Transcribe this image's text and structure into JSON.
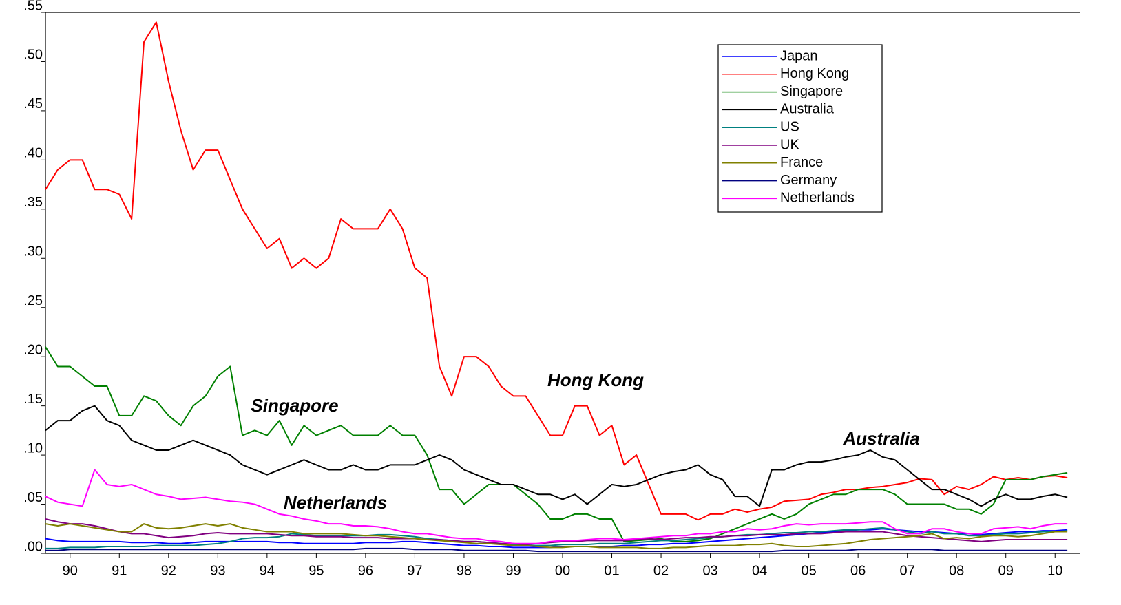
{
  "chart_data": {
    "type": "line",
    "legend": "top-right",
    "xlim": [
      1990,
      2011
    ],
    "ylim": [
      0,
      0.55
    ],
    "yticks": [
      {
        "value": 0,
        "label": ".00"
      },
      {
        "value": 0.05,
        "label": ".05"
      },
      {
        "value": 0.1,
        "label": ".10"
      },
      {
        "value": 0.15,
        "label": ".15"
      },
      {
        "value": 0.2,
        "label": ".20"
      },
      {
        "value": 0.25,
        "label": ".25"
      },
      {
        "value": 0.3,
        "label": ".30"
      },
      {
        "value": 0.35,
        "label": ".35"
      },
      {
        "value": 0.4,
        "label": ".40"
      },
      {
        "value": 0.45,
        "label": ".45"
      },
      {
        "value": 0.5,
        "label": ".50"
      },
      {
        "value": 0.55,
        "label": ".55"
      }
    ],
    "xticks": [
      {
        "value": 1990.5,
        "label": "90"
      },
      {
        "value": 1991.5,
        "label": "91"
      },
      {
        "value": 1992.5,
        "label": "92"
      },
      {
        "value": 1993.5,
        "label": "93"
      },
      {
        "value": 1994.5,
        "label": "94"
      },
      {
        "value": 1995.5,
        "label": "95"
      },
      {
        "value": 1996.5,
        "label": "96"
      },
      {
        "value": 1997.5,
        "label": "97"
      },
      {
        "value": 1998.5,
        "label": "98"
      },
      {
        "value": 1999.5,
        "label": "99"
      },
      {
        "value": 2000.5,
        "label": "00"
      },
      {
        "value": 2001.5,
        "label": "01"
      },
      {
        "value": 2002.5,
        "label": "02"
      },
      {
        "value": 2003.5,
        "label": "03"
      },
      {
        "value": 2004.5,
        "label": "04"
      },
      {
        "value": 2005.5,
        "label": "05"
      },
      {
        "value": 2006.5,
        "label": "06"
      },
      {
        "value": 2007.5,
        "label": "07"
      },
      {
        "value": 2008.5,
        "label": "08"
      },
      {
        "value": 2009.5,
        "label": "09"
      },
      {
        "value": 2010.5,
        "label": "10"
      }
    ],
    "annotations": [
      "Hong Kong",
      "Singapore",
      "Australia",
      "Netherlands"
    ],
    "x": [
      1990,
      1990.25,
      1990.5,
      1990.75,
      1991,
      1991.25,
      1991.5,
      1991.75,
      1992,
      1992.25,
      1992.5,
      1992.75,
      1993,
      1993.25,
      1993.5,
      1993.75,
      1994,
      1994.25,
      1994.5,
      1994.75,
      1995,
      1995.25,
      1995.5,
      1995.75,
      1996,
      1996.25,
      1996.5,
      1996.75,
      1997,
      1997.25,
      1997.5,
      1997.75,
      1998,
      1998.25,
      1998.5,
      1998.75,
      1999,
      1999.25,
      1999.5,
      1999.75,
      2000,
      2000.25,
      2000.5,
      2000.75,
      2001,
      2001.25,
      2001.5,
      2001.75,
      2002,
      2002.25,
      2002.5,
      2002.75,
      2003,
      2003.25,
      2003.5,
      2003.75,
      2004,
      2004.25,
      2004.5,
      2004.75,
      2005,
      2005.25,
      2005.5,
      2005.75,
      2006,
      2006.25,
      2006.5,
      2006.75,
      2007,
      2007.25,
      2007.5,
      2007.75,
      2008,
      2008.25,
      2008.5,
      2008.75,
      2009,
      2009.25,
      2009.5,
      2009.75,
      2010,
      2010.25,
      2010.5,
      2010.75
    ],
    "series": [
      {
        "name": "Japan",
        "color": "#0000ff",
        "values": [
          0.015,
          0.013,
          0.012,
          0.012,
          0.012,
          0.012,
          0.012,
          0.011,
          0.011,
          0.011,
          0.01,
          0.01,
          0.011,
          0.012,
          0.012,
          0.012,
          0.012,
          0.012,
          0.012,
          0.011,
          0.011,
          0.01,
          0.01,
          0.01,
          0.01,
          0.01,
          0.011,
          0.011,
          0.011,
          0.012,
          0.012,
          0.011,
          0.01,
          0.009,
          0.008,
          0.008,
          0.007,
          0.007,
          0.006,
          0.006,
          0.006,
          0.006,
          0.007,
          0.007,
          0.007,
          0.007,
          0.007,
          0.008,
          0.008,
          0.009,
          0.009,
          0.01,
          0.01,
          0.011,
          0.012,
          0.013,
          0.014,
          0.015,
          0.016,
          0.017,
          0.018,
          0.019,
          0.02,
          0.021,
          0.022,
          0.023,
          0.024,
          0.024,
          0.025,
          0.024,
          0.023,
          0.022,
          0.022,
          0.021,
          0.02,
          0.02,
          0.019,
          0.02,
          0.021,
          0.022,
          0.022,
          0.023,
          0.023,
          0.024
        ]
      },
      {
        "name": "Hong Kong",
        "color": "#ff0000",
        "values": [
          0.37,
          0.39,
          0.4,
          0.4,
          0.37,
          0.37,
          0.365,
          0.34,
          0.52,
          0.54,
          0.48,
          0.43,
          0.39,
          0.41,
          0.41,
          0.38,
          0.35,
          0.33,
          0.31,
          0.32,
          0.29,
          0.3,
          0.29,
          0.3,
          0.34,
          0.33,
          0.33,
          0.33,
          0.35,
          0.33,
          0.29,
          0.28,
          0.19,
          0.16,
          0.2,
          0.2,
          0.19,
          0.17,
          0.16,
          0.16,
          0.14,
          0.12,
          0.12,
          0.15,
          0.15,
          0.12,
          0.13,
          0.09,
          0.1,
          0.07,
          0.04,
          0.04,
          0.04,
          0.034,
          0.04,
          0.04,
          0.045,
          0.042,
          0.045,
          0.047,
          0.053,
          0.054,
          0.055,
          0.06,
          0.062,
          0.065,
          0.065,
          0.067,
          0.068,
          0.07,
          0.072,
          0.076,
          0.075,
          0.06,
          0.068,
          0.065,
          0.07,
          0.078,
          0.075,
          0.077,
          0.075,
          0.078,
          0.079,
          0.077
        ]
      },
      {
        "name": "Singapore",
        "color": "#008000",
        "values": [
          0.21,
          0.19,
          0.19,
          0.18,
          0.17,
          0.17,
          0.14,
          0.14,
          0.16,
          0.155,
          0.14,
          0.13,
          0.15,
          0.16,
          0.18,
          0.19,
          0.12,
          0.125,
          0.12,
          0.135,
          0.11,
          0.13,
          0.12,
          0.125,
          0.13,
          0.12,
          0.12,
          0.12,
          0.13,
          0.12,
          0.12,
          0.1,
          0.065,
          0.065,
          0.05,
          0.06,
          0.07,
          0.07,
          0.07,
          0.06,
          0.05,
          0.035,
          0.035,
          0.04,
          0.04,
          0.035,
          0.035,
          0.012,
          0.013,
          0.014,
          0.015,
          0.012,
          0.012,
          0.013,
          0.015,
          0.02,
          0.025,
          0.03,
          0.035,
          0.04,
          0.035,
          0.04,
          0.05,
          0.055,
          0.06,
          0.06,
          0.065,
          0.065,
          0.065,
          0.06,
          0.05,
          0.05,
          0.05,
          0.05,
          0.045,
          0.045,
          0.04,
          0.05,
          0.075,
          0.075,
          0.075,
          0.078,
          0.08,
          0.082
        ]
      },
      {
        "name": "Australia",
        "color": "#000000",
        "values": [
          0.125,
          0.135,
          0.135,
          0.145,
          0.15,
          0.135,
          0.13,
          0.115,
          0.11,
          0.105,
          0.105,
          0.11,
          0.115,
          0.11,
          0.105,
          0.1,
          0.09,
          0.085,
          0.08,
          0.085,
          0.09,
          0.095,
          0.09,
          0.085,
          0.085,
          0.09,
          0.085,
          0.085,
          0.09,
          0.09,
          0.09,
          0.095,
          0.1,
          0.095,
          0.085,
          0.08,
          0.075,
          0.07,
          0.07,
          0.065,
          0.06,
          0.06,
          0.055,
          0.06,
          0.05,
          0.06,
          0.07,
          0.068,
          0.07,
          0.075,
          0.08,
          0.083,
          0.085,
          0.09,
          0.08,
          0.075,
          0.058,
          0.058,
          0.048,
          0.085,
          0.085,
          0.09,
          0.093,
          0.093,
          0.095,
          0.098,
          0.1,
          0.105,
          0.098,
          0.095,
          0.085,
          0.075,
          0.065,
          0.065,
          0.06,
          0.055,
          0.048,
          0.055,
          0.06,
          0.055,
          0.055,
          0.058,
          0.06,
          0.057
        ]
      },
      {
        "name": "US",
        "color": "#008080",
        "values": [
          0.005,
          0.005,
          0.006,
          0.006,
          0.006,
          0.007,
          0.007,
          0.007,
          0.007,
          0.008,
          0.008,
          0.008,
          0.008,
          0.009,
          0.01,
          0.012,
          0.015,
          0.016,
          0.016,
          0.017,
          0.02,
          0.019,
          0.018,
          0.018,
          0.018,
          0.018,
          0.018,
          0.019,
          0.019,
          0.018,
          0.017,
          0.015,
          0.014,
          0.013,
          0.012,
          0.012,
          0.011,
          0.01,
          0.009,
          0.008,
          0.008,
          0.008,
          0.009,
          0.009,
          0.009,
          0.01,
          0.01,
          0.01,
          0.011,
          0.012,
          0.013,
          0.013,
          0.014,
          0.015,
          0.016,
          0.017,
          0.018,
          0.019,
          0.019,
          0.02,
          0.021,
          0.021,
          0.022,
          0.022,
          0.023,
          0.024,
          0.024,
          0.025,
          0.026,
          0.024,
          0.022,
          0.02,
          0.022,
          0.02,
          0.02,
          0.018,
          0.018,
          0.019,
          0.02,
          0.02,
          0.021,
          0.022,
          0.022,
          0.023
        ]
      },
      {
        "name": "UK",
        "color": "#800080",
        "values": [
          0.035,
          0.032,
          0.03,
          0.03,
          0.028,
          0.025,
          0.022,
          0.02,
          0.02,
          0.018,
          0.016,
          0.017,
          0.018,
          0.02,
          0.021,
          0.02,
          0.02,
          0.02,
          0.02,
          0.019,
          0.018,
          0.018,
          0.017,
          0.017,
          0.017,
          0.016,
          0.016,
          0.016,
          0.015,
          0.015,
          0.015,
          0.014,
          0.014,
          0.013,
          0.012,
          0.012,
          0.011,
          0.01,
          0.01,
          0.009,
          0.01,
          0.011,
          0.012,
          0.012,
          0.013,
          0.013,
          0.013,
          0.013,
          0.014,
          0.015,
          0.014,
          0.015,
          0.016,
          0.016,
          0.017,
          0.017,
          0.018,
          0.018,
          0.019,
          0.019,
          0.019,
          0.02,
          0.02,
          0.02,
          0.021,
          0.022,
          0.022,
          0.022,
          0.022,
          0.02,
          0.018,
          0.017,
          0.016,
          0.015,
          0.014,
          0.013,
          0.012,
          0.013,
          0.014,
          0.014,
          0.014,
          0.014,
          0.014,
          0.014
        ]
      },
      {
        "name": "France",
        "color": "#808000",
        "values": [
          0.03,
          0.028,
          0.03,
          0.028,
          0.026,
          0.024,
          0.022,
          0.022,
          0.03,
          0.026,
          0.025,
          0.026,
          0.028,
          0.03,
          0.028,
          0.03,
          0.026,
          0.024,
          0.022,
          0.022,
          0.022,
          0.02,
          0.02,
          0.02,
          0.02,
          0.019,
          0.018,
          0.018,
          0.017,
          0.016,
          0.015,
          0.014,
          0.013,
          0.012,
          0.011,
          0.01,
          0.01,
          0.009,
          0.008,
          0.008,
          0.007,
          0.006,
          0.006,
          0.007,
          0.007,
          0.006,
          0.006,
          0.006,
          0.006,
          0.005,
          0.005,
          0.006,
          0.006,
          0.007,
          0.008,
          0.008,
          0.008,
          0.009,
          0.009,
          0.01,
          0.008,
          0.007,
          0.007,
          0.008,
          0.009,
          0.01,
          0.012,
          0.014,
          0.015,
          0.016,
          0.017,
          0.018,
          0.02,
          0.015,
          0.016,
          0.015,
          0.017,
          0.018,
          0.018,
          0.017,
          0.018,
          0.02,
          0.022,
          0.022
        ]
      },
      {
        "name": "Germany",
        "color": "#000080",
        "values": [
          0.003,
          0.003,
          0.004,
          0.004,
          0.004,
          0.004,
          0.004,
          0.004,
          0.004,
          0.004,
          0.004,
          0.004,
          0.004,
          0.004,
          0.004,
          0.004,
          0.004,
          0.004,
          0.004,
          0.004,
          0.004,
          0.004,
          0.004,
          0.004,
          0.004,
          0.004,
          0.005,
          0.005,
          0.005,
          0.005,
          0.004,
          0.004,
          0.004,
          0.004,
          0.003,
          0.003,
          0.003,
          0.003,
          0.003,
          0.003,
          0.002,
          0.002,
          0.002,
          0.002,
          0.002,
          0.002,
          0.002,
          0.002,
          0.002,
          0.002,
          0.002,
          0.002,
          0.002,
          0.002,
          0.002,
          0.002,
          0.002,
          0.002,
          0.002,
          0.002,
          0.003,
          0.003,
          0.003,
          0.003,
          0.003,
          0.003,
          0.004,
          0.004,
          0.004,
          0.004,
          0.004,
          0.004,
          0.004,
          0.003,
          0.003,
          0.003,
          0.003,
          0.003,
          0.003,
          0.003,
          0.003,
          0.003,
          0.003,
          0.003
        ]
      },
      {
        "name": "Netherlands",
        "color": "#ff00ff",
        "values": [
          0.058,
          0.052,
          0.05,
          0.048,
          0.085,
          0.07,
          0.068,
          0.07,
          0.065,
          0.06,
          0.058,
          0.055,
          0.056,
          0.057,
          0.055,
          0.053,
          0.052,
          0.05,
          0.045,
          0.04,
          0.038,
          0.035,
          0.033,
          0.03,
          0.03,
          0.028,
          0.028,
          0.027,
          0.025,
          0.022,
          0.02,
          0.02,
          0.018,
          0.016,
          0.015,
          0.015,
          0.013,
          0.012,
          0.01,
          0.01,
          0.01,
          0.012,
          0.013,
          0.013,
          0.014,
          0.015,
          0.015,
          0.014,
          0.015,
          0.016,
          0.017,
          0.018,
          0.018,
          0.02,
          0.02,
          0.022,
          0.022,
          0.025,
          0.024,
          0.025,
          0.028,
          0.03,
          0.029,
          0.03,
          0.03,
          0.03,
          0.031,
          0.032,
          0.032,
          0.025,
          0.02,
          0.02,
          0.025,
          0.025,
          0.022,
          0.02,
          0.02,
          0.025,
          0.026,
          0.027,
          0.025,
          0.028,
          0.03,
          0.03
        ]
      }
    ]
  }
}
